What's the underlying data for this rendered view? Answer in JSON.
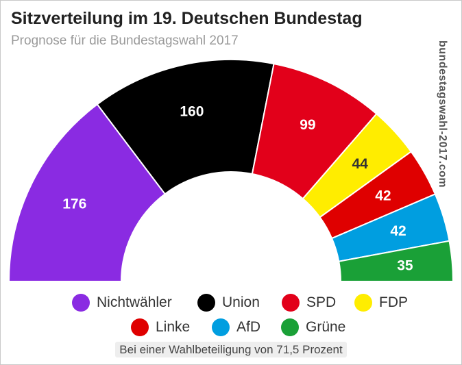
{
  "chart_data": {
    "type": "pie",
    "title": "Sitzverteilung im 19. Deutschen Bundestag",
    "subtitle": "Prognose für die Bundestagswahl 2017",
    "source": "bundestagswahl-2017.com",
    "footnote": "Bei einer Wahlbeteiligung von 71,5 Prozent",
    "layout": "semicircle",
    "legend_position": "bottom",
    "slices": [
      {
        "name": "Nichtwähler",
        "value": 176,
        "color": "#8a2be2"
      },
      {
        "name": "Union",
        "value": 160,
        "color": "#000000"
      },
      {
        "name": "SPD",
        "value": 99,
        "color": "#e2001a"
      },
      {
        "name": "FDP",
        "value": 44,
        "color": "#ffed00"
      },
      {
        "name": "Linke",
        "value": 42,
        "color": "#df0000"
      },
      {
        "name": "AfD",
        "value": 42,
        "color": "#009ee0"
      },
      {
        "name": "Grüne",
        "value": 35,
        "color": "#1aa037"
      }
    ]
  }
}
